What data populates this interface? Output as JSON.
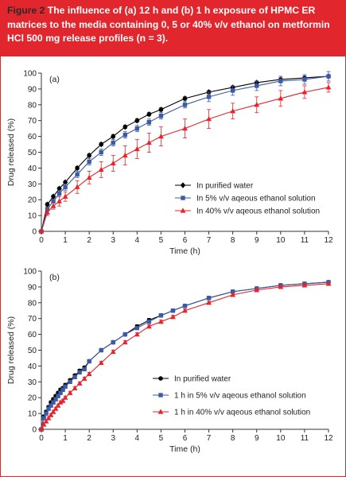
{
  "caption": {
    "figure_label": "Figure 2",
    "text": "The influence of (a) 12 h and (b) 1 h exposure of HPMC ER matrices to the media containing 0, 5 or 40% v/v ethanol on metformin HCl 500 mg release profiles (n = 3)."
  },
  "colors": {
    "caption_bg": "#e1262d",
    "water": "#000000",
    "ethanol5": "#3b5ba5",
    "ethanol40": "#e8232a",
    "axis": "#333333"
  },
  "chart_data": [
    {
      "type": "line",
      "panel_label": "(a)",
      "xlabel": "Time (h)",
      "ylabel": "Drug released (%)",
      "xlim": [
        0,
        12
      ],
      "ylim": [
        0,
        100
      ],
      "x_ticks": [
        0,
        1,
        2,
        3,
        4,
        5,
        6,
        7,
        8,
        9,
        10,
        11,
        12
      ],
      "y_ticks": [
        0,
        10,
        20,
        30,
        40,
        50,
        60,
        70,
        80,
        90,
        100
      ],
      "grid": false,
      "legend_position": "center-right",
      "series": [
        {
          "name": "In purified water",
          "marker": "diamond",
          "color_key": "water",
          "x": [
            0,
            0.25,
            0.5,
            0.75,
            1,
            1.5,
            2,
            2.5,
            3,
            3.5,
            4,
            4.5,
            5,
            6,
            7,
            8,
            9,
            10,
            11,
            12
          ],
          "y": [
            0,
            17,
            22,
            27,
            31,
            40,
            48,
            55,
            60,
            66,
            70,
            74,
            77,
            84,
            88,
            91,
            94,
            96,
            97,
            98
          ],
          "err": [
            0,
            1,
            1,
            1,
            1,
            1,
            1,
            1,
            1,
            1,
            1,
            1,
            1,
            1,
            1,
            1,
            1,
            1,
            1,
            1
          ]
        },
        {
          "name": "In 5% v/v aqeous ethanol solution",
          "marker": "square",
          "color_key": "ethanol5",
          "x": [
            0,
            0.25,
            0.5,
            0.75,
            1,
            1.5,
            2,
            2.5,
            3,
            3.5,
            4,
            4.5,
            5,
            6,
            7,
            8,
            9,
            10,
            11,
            12
          ],
          "y": [
            0,
            14,
            19,
            24,
            28,
            36,
            44,
            50,
            56,
            61,
            65,
            69,
            73,
            80,
            85,
            89,
            92,
            95,
            96,
            98
          ],
          "err": [
            0,
            1,
            1,
            2,
            2,
            2,
            2,
            2,
            2,
            2,
            2,
            2,
            2,
            2,
            3,
            3,
            3,
            3,
            3,
            3
          ]
        },
        {
          "name": "In 40% v/v aqeous ethanol solution",
          "marker": "triangle",
          "color_key": "ethanol40",
          "x": [
            0,
            0.25,
            0.5,
            0.75,
            1,
            1.5,
            2,
            2.5,
            3,
            3.5,
            4,
            4.5,
            5,
            6,
            7,
            8,
            9,
            10,
            11,
            12
          ],
          "y": [
            0,
            12,
            16,
            19,
            22,
            28,
            34,
            39,
            43,
            48,
            52,
            56,
            60,
            65,
            71,
            76,
            80,
            84,
            88,
            91
          ],
          "err": [
            0,
            2,
            2,
            3,
            3,
            4,
            4,
            5,
            5,
            6,
            6,
            6,
            6,
            6,
            6,
            5,
            5,
            5,
            4,
            3
          ]
        }
      ]
    },
    {
      "type": "line",
      "panel_label": "(b)",
      "xlabel": "Time (h)",
      "ylabel": "Drug released (%)",
      "xlim": [
        0,
        12
      ],
      "ylim": [
        0,
        100
      ],
      "x_ticks": [
        0,
        1,
        2,
        3,
        4,
        5,
        6,
        7,
        8,
        9,
        10,
        11,
        12
      ],
      "y_ticks": [
        0,
        10,
        20,
        30,
        40,
        50,
        60,
        70,
        80,
        90,
        100
      ],
      "grid": false,
      "legend_position": "bottom-right",
      "series": [
        {
          "name": "In purified water",
          "marker": "circle",
          "color_key": "water",
          "x": [
            0,
            0.1,
            0.2,
            0.3,
            0.4,
            0.5,
            0.6,
            0.7,
            0.8,
            0.9,
            1,
            1.2,
            1.4,
            1.6,
            1.8,
            2,
            2.5,
            3,
            3.5,
            4,
            4.5,
            5,
            5.5,
            6,
            7,
            8,
            9,
            10,
            11,
            12
          ],
          "y": [
            0,
            8,
            11,
            14,
            17,
            19,
            21,
            23,
            25,
            26,
            28,
            31,
            34,
            37,
            39,
            43,
            50,
            55,
            60,
            65,
            69,
            72,
            75,
            78,
            83,
            87,
            89,
            91,
            92,
            93
          ],
          "err": [
            0,
            1,
            1,
            1,
            1,
            1,
            1,
            1,
            1,
            1,
            1,
            1,
            1,
            1,
            1,
            1,
            1,
            1,
            1,
            1,
            1,
            1,
            1,
            1,
            1,
            1,
            1,
            1,
            1,
            1
          ]
        },
        {
          "name": "1 h in 5% v/v aqeous ethanol solution",
          "marker": "square",
          "color_key": "ethanol5",
          "x": [
            0,
            0.1,
            0.2,
            0.3,
            0.4,
            0.5,
            0.6,
            0.7,
            0.8,
            0.9,
            1,
            1.2,
            1.4,
            1.6,
            1.8,
            2,
            2.5,
            3,
            3.5,
            4,
            4.5,
            5,
            5.5,
            6,
            7,
            8,
            9,
            10,
            11,
            12
          ],
          "y": [
            0,
            7,
            10,
            13,
            15,
            17,
            19,
            21,
            23,
            25,
            27,
            30,
            33,
            36,
            38,
            43,
            50,
            55,
            60,
            64,
            68,
            72,
            75,
            78,
            83,
            87,
            89,
            91,
            92,
            93
          ],
          "err": [
            0,
            1,
            1,
            1,
            1,
            1,
            1,
            1,
            1,
            1,
            1,
            1,
            1,
            1,
            1,
            1,
            1,
            1,
            1,
            1,
            1,
            1,
            1,
            1,
            1,
            1,
            1,
            1,
            1,
            1
          ]
        },
        {
          "name": "1 h in 40% v/v aqeous ethanol solution",
          "marker": "triangle",
          "color_key": "ethanol40",
          "x": [
            0,
            0.1,
            0.2,
            0.3,
            0.4,
            0.5,
            0.6,
            0.7,
            0.8,
            0.9,
            1,
            1.2,
            1.4,
            1.6,
            1.8,
            2,
            2.5,
            3,
            3.5,
            4,
            4.5,
            5,
            5.5,
            6,
            7,
            8,
            9,
            10,
            11,
            12
          ],
          "y": [
            0,
            3,
            5,
            7,
            9,
            11,
            13,
            15,
            17,
            18,
            20,
            23,
            26,
            29,
            32,
            35,
            42,
            49,
            55,
            60,
            65,
            68,
            71,
            75,
            80,
            85,
            88,
            90,
            91,
            92
          ],
          "err": [
            0,
            1,
            1,
            1,
            1,
            1,
            1,
            1,
            1,
            1,
            1,
            1,
            1,
            1,
            1,
            1,
            1,
            1,
            1,
            1,
            1,
            1,
            1,
            1,
            1,
            1,
            1,
            1,
            1,
            1
          ]
        }
      ]
    }
  ]
}
